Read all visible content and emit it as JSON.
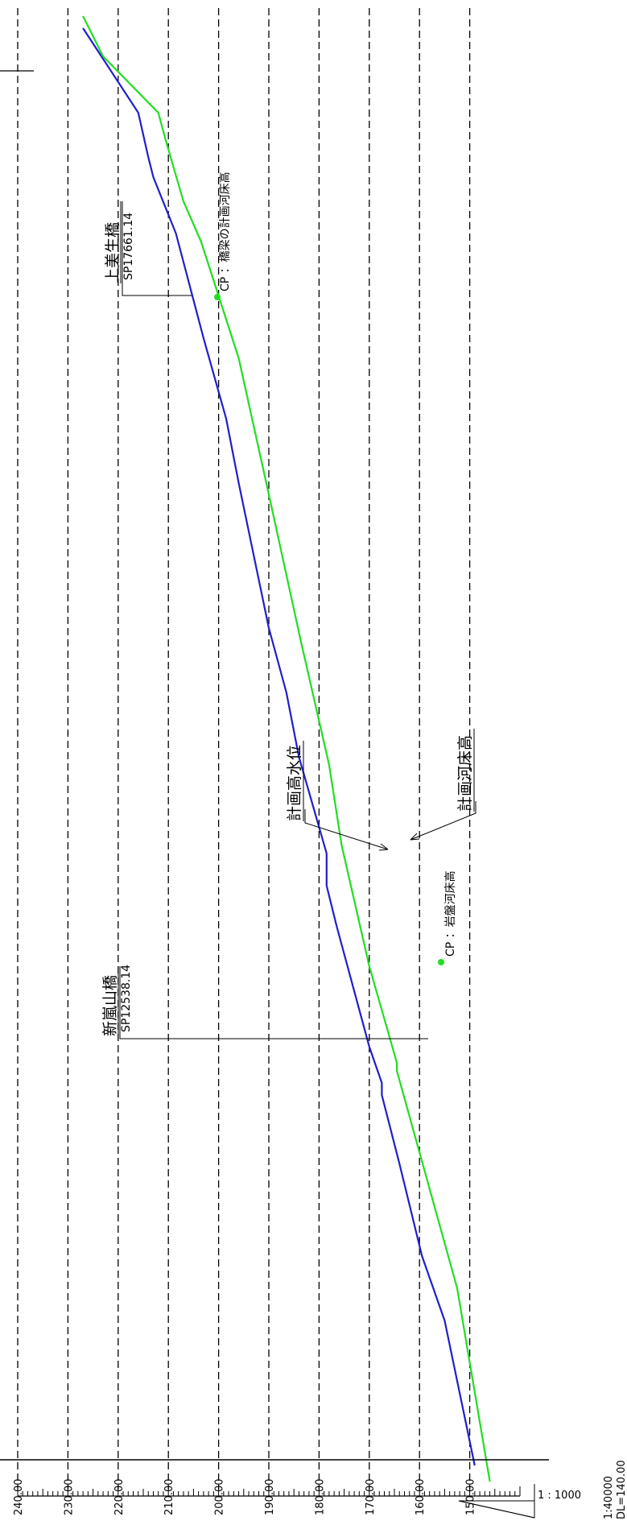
{
  "chart_data": {
    "type": "line",
    "orientation": "rotated-90-ccw",
    "title": "",
    "xlabel": "",
    "ylabel": "",
    "ylim": [
      140,
      240
    ],
    "yticks": [
      "240.00",
      "230.00",
      "220.00",
      "210.00",
      "200.00",
      "190.00",
      "180.00",
      "170.00",
      "160.00",
      "150.00"
    ],
    "grid": true,
    "x_unit": "px-along-profile",
    "series": [
      {
        "name": "計画高水位",
        "color": "#1f1fcc",
        "points": [
          [
            1820,
            149.0
          ],
          [
            1640,
            155.0
          ],
          [
            1560,
            159.5
          ],
          [
            1445,
            164.0
          ],
          [
            1360,
            167.5
          ],
          [
            1345,
            167.5
          ],
          [
            1300,
            170.0
          ],
          [
            1150,
            176.5
          ],
          [
            1100,
            178.5
          ],
          [
            1060,
            178.5
          ],
          [
            940,
            184.0
          ],
          [
            860,
            186.5
          ],
          [
            780,
            190.0
          ],
          [
            600,
            196.0
          ],
          [
            520,
            198.5
          ],
          [
            420,
            203.0
          ],
          [
            290,
            208.5
          ],
          [
            220,
            213.0
          ],
          [
            195,
            214.0
          ],
          [
            140,
            216.0
          ],
          [
            35,
            227.0
          ]
        ]
      },
      {
        "name": "計画河床高",
        "color": "#22dd22",
        "points": [
          [
            1840,
            146.0
          ],
          [
            1600,
            152.5
          ],
          [
            1330,
            164.5
          ],
          [
            1320,
            164.5
          ],
          [
            1200,
            170.0
          ],
          [
            1050,
            175.5
          ],
          [
            950,
            178.0
          ],
          [
            800,
            183.5
          ],
          [
            600,
            190.5
          ],
          [
            445,
            196.0
          ],
          [
            300,
            203.5
          ],
          [
            250,
            207.0
          ],
          [
            175,
            210.5
          ],
          [
            140,
            212.0
          ],
          [
            70,
            223.0
          ],
          [
            20,
            227.0
          ]
        ]
      }
    ],
    "annotations": [
      {
        "label": "CP：橋梁の計画河床高",
        "x": 255,
        "y": 207.0
      },
      {
        "label": "CP：岩盤河床高",
        "x": 1215,
        "y": 170.0
      }
    ],
    "bridges": [
      {
        "name": "上美生橋",
        "sp": "SP17661.14",
        "x": 250
      },
      {
        "name": "新嵐山橋",
        "sp": "SP12538.14",
        "x": 1275
      }
    ]
  },
  "labels": {
    "bridge_top_name": "上美生橋",
    "bridge_top_sp": "SP17661.14",
    "bridge_bottom_name": "新嵐山橋",
    "bridge_bottom_sp": "SP12538.14",
    "cp_top": "CP ：橋梁の計画河床高",
    "cp_bottom": "CP ：岩盤河床高",
    "water_level": "計画高水位",
    "bed_level": "計画河床高"
  },
  "scale": {
    "horizontal": "1 : 1000",
    "vertical": "1:40000",
    "datum": "DL=140.00"
  }
}
